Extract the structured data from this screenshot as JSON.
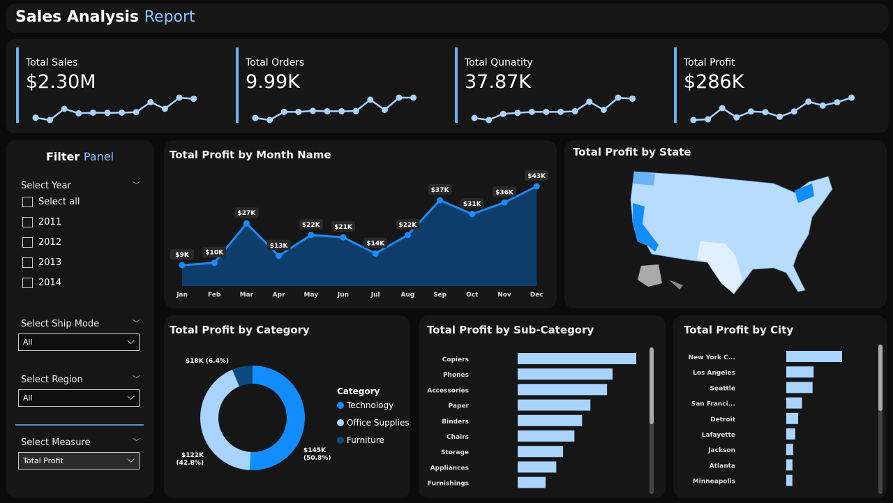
{
  "header": {
    "title": "Sales Analysis",
    "title_accent": "Report"
  },
  "kpis": [
    {
      "label": "Total Sales",
      "value": "$2.30M",
      "trend": [
        4,
        3,
        8,
        6,
        6.3,
        6.2,
        6.3,
        6.5,
        11,
        8,
        13,
        12.5
      ]
    },
    {
      "label": "Total Orders",
      "value": "9.99K",
      "trend": [
        4,
        3,
        7,
        7,
        7.5,
        7.3,
        7.3,
        7.4,
        13,
        8,
        14,
        14
      ]
    },
    {
      "label": "Total Qunatity",
      "value": "37.87K",
      "trend": [
        4,
        3,
        6,
        6.5,
        7,
        7,
        7,
        7.3,
        12,
        8,
        14,
        13.5
      ]
    },
    {
      "label": "Total Profit",
      "value": "$286K",
      "trend": [
        9,
        10,
        27,
        13,
        22,
        21,
        14,
        22,
        37,
        31,
        36,
        43
      ]
    }
  ],
  "filter": {
    "title": "Filter",
    "title_accent": "Panel",
    "year_label": "Select Year",
    "years": [
      "Select all",
      "2011",
      "2012",
      "2013",
      "2014"
    ],
    "ship_label": "Select Ship Mode",
    "ship_value": "All",
    "region_label": "Select Region",
    "region_value": "All",
    "measure_label": "Select Measure",
    "measure_value": "Total Profit"
  },
  "chart_data": [
    {
      "type": "area",
      "title": "Total Profit by Month Name",
      "categories": [
        "Jan",
        "Feb",
        "Mar",
        "Apr",
        "May",
        "Jun",
        "Jul",
        "Aug",
        "Sep",
        "Oct",
        "Nov",
        "Dec"
      ],
      "values": [
        9,
        10,
        27,
        13,
        22,
        21,
        14,
        22,
        37,
        31,
        36,
        43
      ],
      "labels": [
        "$9K",
        "$10K",
        "$27K",
        "$13K",
        "$22K",
        "$21K",
        "$14K",
        "$22K",
        "$37K",
        "$31K",
        "$36K",
        "$43K"
      ],
      "color": "#1a8cff"
    },
    {
      "type": "pie",
      "title": "Total Profit by Category",
      "legend_title": "Category",
      "categories": [
        "Technology",
        "Office Supplies",
        "Furniture"
      ],
      "values": [
        145,
        122,
        18
      ],
      "labels": [
        "$145K (50.8%)",
        "$122K (42.8%)",
        "$18K (6.4%)"
      ],
      "colors": [
        "#118dff",
        "#a8d4ff",
        "#0b4a80"
      ]
    },
    {
      "type": "bar",
      "title": "Total Profit by Sub-Category",
      "categories": [
        "Copiers",
        "Phones",
        "Accessories",
        "Paper",
        "Binders",
        "Chairs",
        "Storage",
        "Appliances",
        "Furnishings"
      ],
      "values": [
        55.6,
        44.5,
        41.9,
        34.1,
        30.2,
        26.6,
        21.3,
        18.1,
        13.1
      ],
      "color": "#a8d4ff"
    },
    {
      "type": "bar",
      "title": "Total Profit by City",
      "categories": [
        "New York C...",
        "Los Angeles",
        "Seattle",
        "San Franci...",
        "Detroit",
        "Lafayette",
        "Jackson",
        "Atlanta",
        "Minneapolis"
      ],
      "values": [
        62,
        30.4,
        29.2,
        17.5,
        13.2,
        10,
        7.6,
        6.9,
        6.8
      ],
      "color": "#a8d4ff"
    }
  ],
  "map": {
    "title": "Total Profit by State"
  }
}
